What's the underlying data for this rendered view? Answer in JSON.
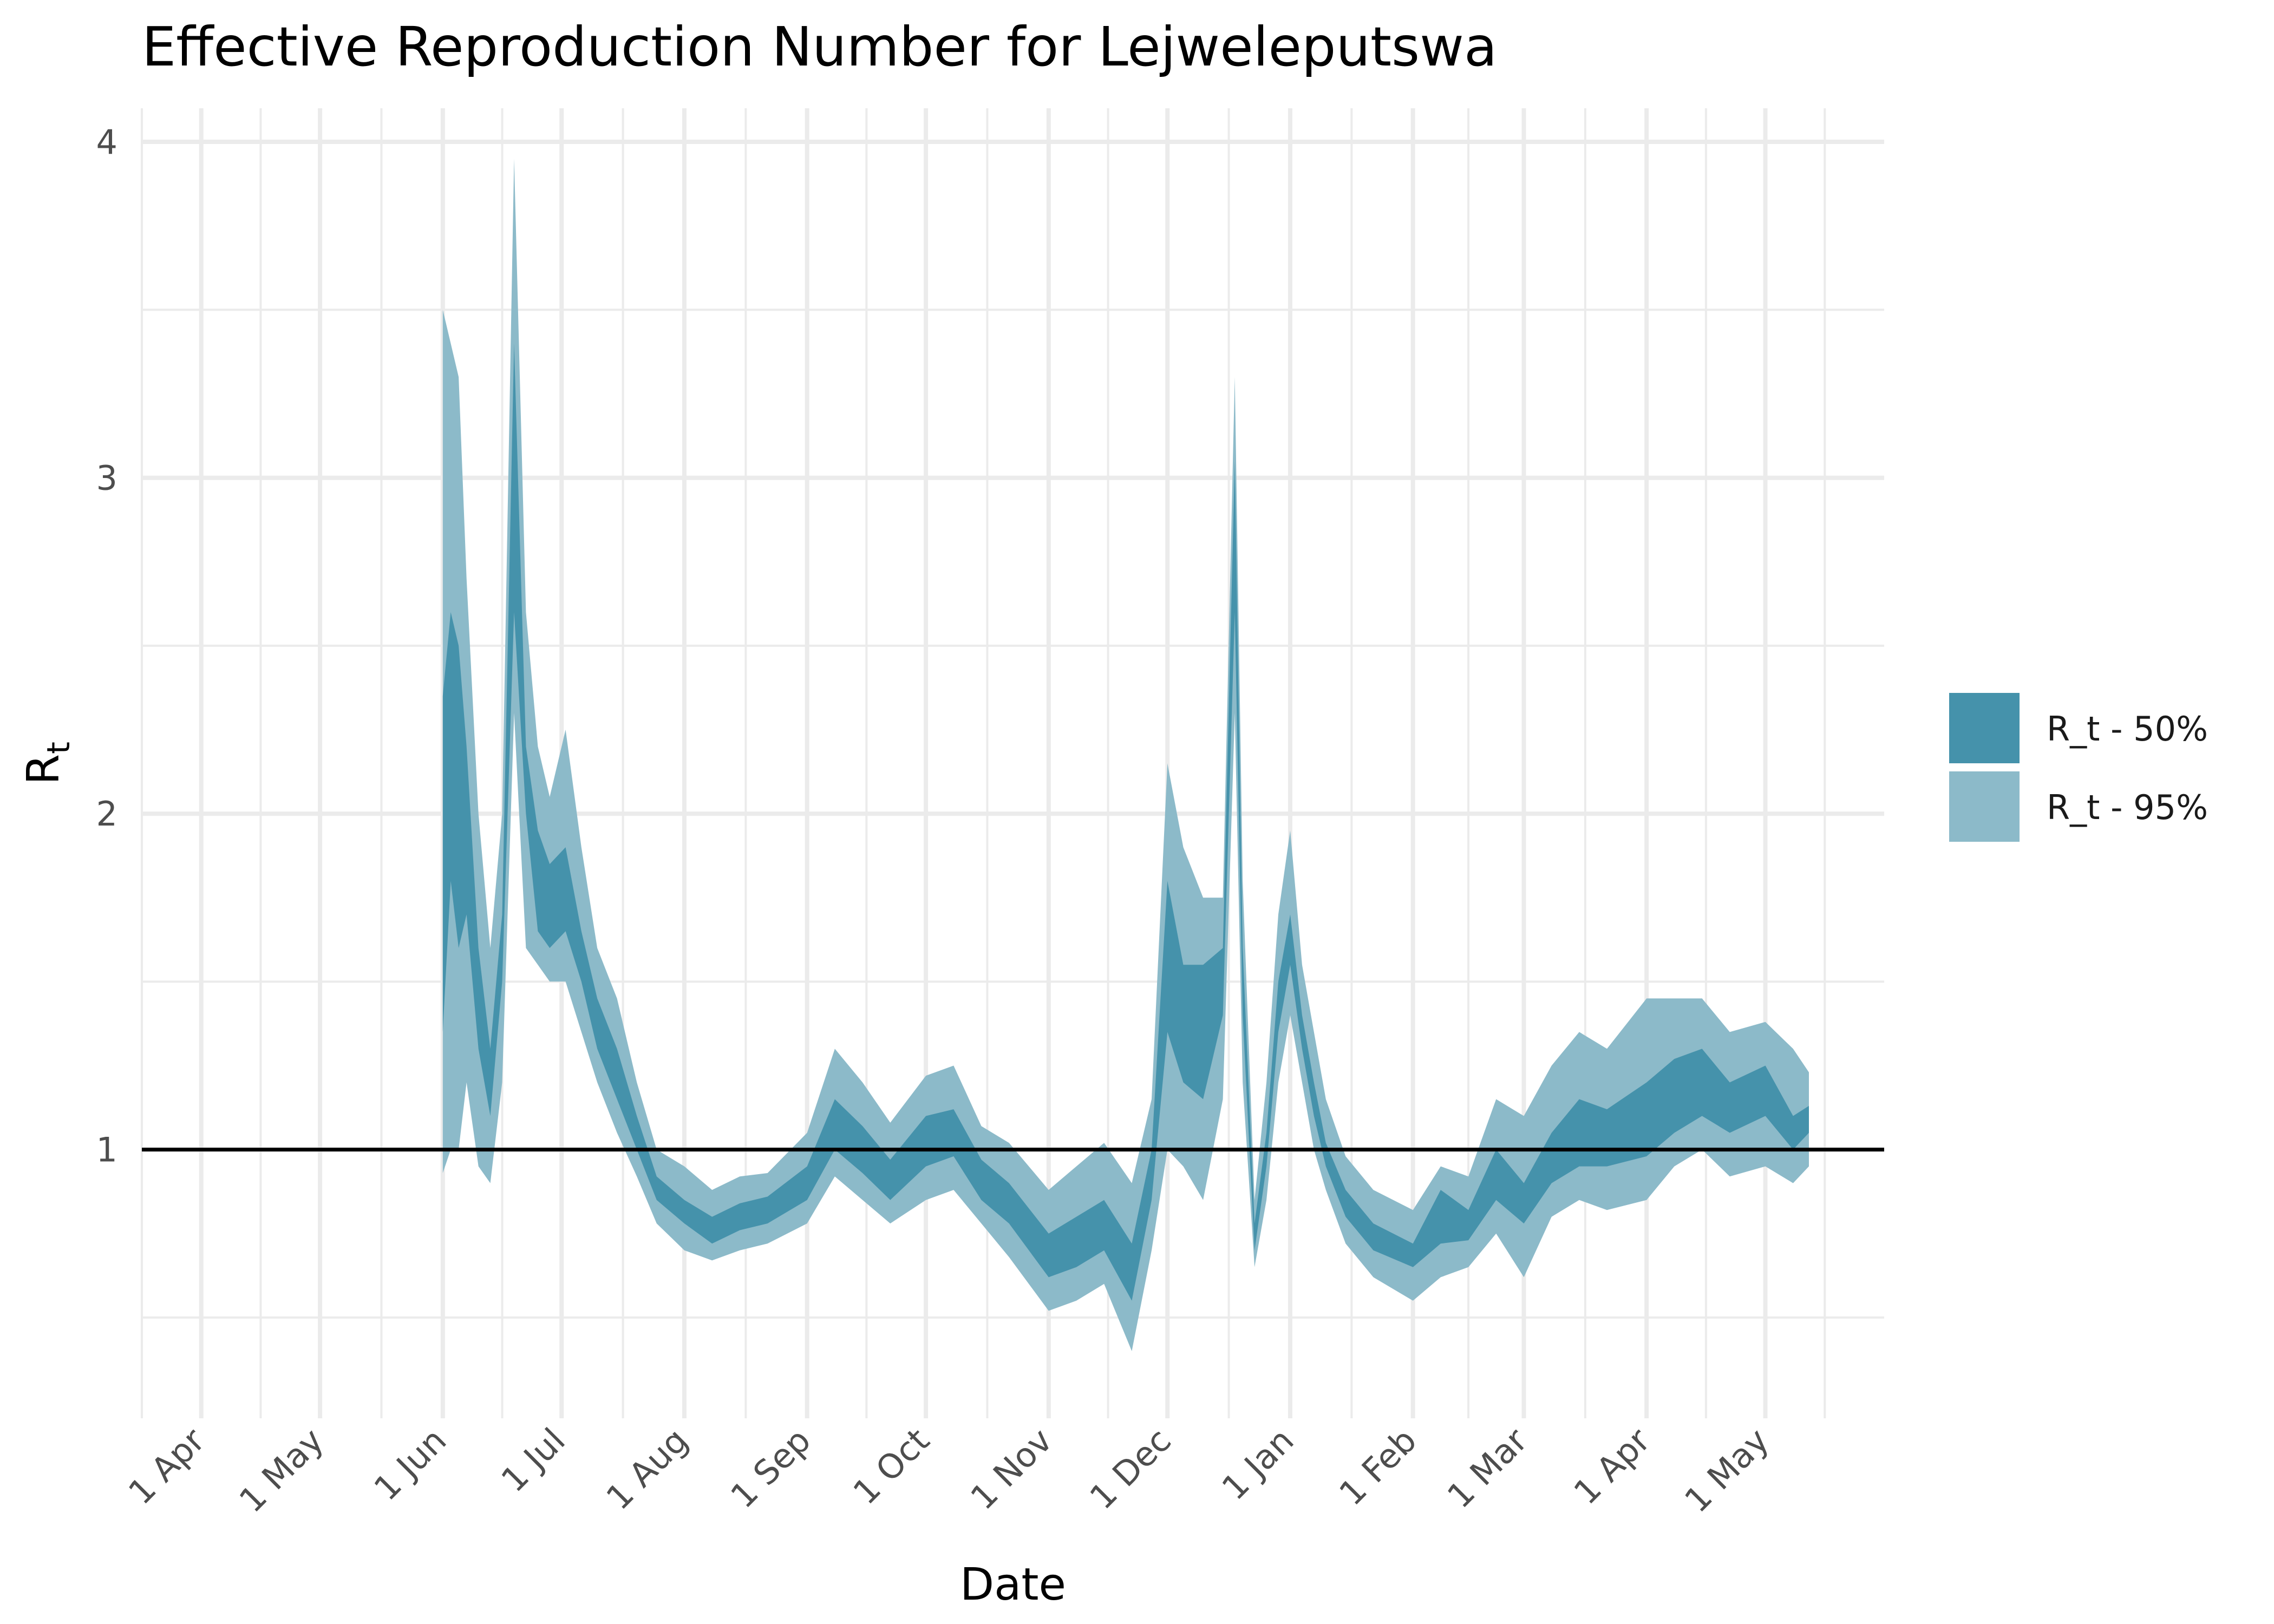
{
  "title": "Effective Reproduction Number for Lejweleputswa",
  "chart_data": {
    "type": "area",
    "title": "Effective Reproduction Number for Lejweleputswa",
    "xlabel": "Date",
    "ylabel": "R",
    "ylabel_subscript": "t",
    "ylim": [
      0.2,
      4.1
    ],
    "xlim": [
      "2020-03-17",
      "2021-05-31"
    ],
    "x_ticks": [
      {
        "date": "2020-04-01",
        "label": "1 Apr"
      },
      {
        "date": "2020-05-01",
        "label": "1 May"
      },
      {
        "date": "2020-06-01",
        "label": "1 Jun"
      },
      {
        "date": "2020-07-01",
        "label": "1 Jul"
      },
      {
        "date": "2020-08-01",
        "label": "1 Aug"
      },
      {
        "date": "2020-09-01",
        "label": "1 Sep"
      },
      {
        "date": "2020-10-01",
        "label": "1 Oct"
      },
      {
        "date": "2020-11-01",
        "label": "1 Nov"
      },
      {
        "date": "2020-12-01",
        "label": "1 Dec"
      },
      {
        "date": "2021-01-01",
        "label": "1 Jan"
      },
      {
        "date": "2021-02-01",
        "label": "1 Feb"
      },
      {
        "date": "2021-03-01",
        "label": "1 Mar"
      },
      {
        "date": "2021-04-01",
        "label": "1 Apr"
      },
      {
        "date": "2021-05-01",
        "label": "1 May"
      }
    ],
    "y_ticks": [
      1,
      2,
      3,
      4
    ],
    "grid": true,
    "reference_line": 1,
    "legend_position": "right",
    "colors": {
      "band50": "#4592ab",
      "band95": "#8cbac9",
      "grid": "#ebebeb",
      "axis_text": "#4d4d4d"
    },
    "series": [
      {
        "name": "R_t - 50%",
        "x": [
          "2020-06-01",
          "2020-06-03",
          "2020-06-05",
          "2020-06-07",
          "2020-06-10",
          "2020-06-13",
          "2020-06-16",
          "2020-06-19",
          "2020-06-22",
          "2020-06-25",
          "2020-06-28",
          "2020-07-02",
          "2020-07-06",
          "2020-07-10",
          "2020-07-15",
          "2020-07-20",
          "2020-07-25",
          "2020-08-01",
          "2020-08-08",
          "2020-08-15",
          "2020-08-22",
          "2020-09-01",
          "2020-09-08",
          "2020-09-15",
          "2020-09-22",
          "2020-10-01",
          "2020-10-08",
          "2020-10-15",
          "2020-10-22",
          "2020-11-01",
          "2020-11-08",
          "2020-11-15",
          "2020-11-22",
          "2020-11-27",
          "2020-12-01",
          "2020-12-05",
          "2020-12-10",
          "2020-12-15",
          "2020-12-18",
          "2020-12-20",
          "2020-12-23",
          "2020-12-26",
          "2020-12-29",
          "2021-01-01",
          "2021-01-04",
          "2021-01-07",
          "2021-01-10",
          "2021-01-15",
          "2021-01-22",
          "2021-02-01",
          "2021-02-08",
          "2021-02-15",
          "2021-02-22",
          "2021-03-01",
          "2021-03-08",
          "2021-03-15",
          "2021-03-22",
          "2021-04-01",
          "2021-04-08",
          "2021-04-15",
          "2021-04-22",
          "2021-05-01",
          "2021-05-08",
          "2021-05-12"
        ],
        "lower": [
          1.35,
          1.8,
          1.6,
          1.7,
          1.3,
          1.1,
          1.5,
          2.6,
          2.0,
          1.65,
          1.6,
          1.65,
          1.5,
          1.3,
          1.15,
          1.0,
          0.85,
          0.78,
          0.72,
          0.76,
          0.78,
          0.85,
          1.0,
          0.93,
          0.85,
          0.95,
          0.98,
          0.85,
          0.78,
          0.62,
          0.65,
          0.7,
          0.55,
          0.85,
          1.35,
          1.2,
          1.15,
          1.4,
          2.6,
          1.4,
          0.7,
          0.95,
          1.35,
          1.55,
          1.3,
          1.1,
          0.95,
          0.8,
          0.7,
          0.65,
          0.72,
          0.73,
          0.85,
          0.78,
          0.9,
          0.95,
          0.95,
          0.98,
          1.05,
          1.1,
          1.05,
          1.1,
          1.0,
          1.05
        ],
        "upper": [
          2.35,
          2.6,
          2.5,
          2.2,
          1.6,
          1.3,
          1.7,
          3.4,
          2.2,
          1.95,
          1.85,
          1.9,
          1.65,
          1.45,
          1.3,
          1.1,
          0.92,
          0.85,
          0.8,
          0.84,
          0.86,
          0.95,
          1.15,
          1.07,
          0.97,
          1.1,
          1.12,
          0.97,
          0.9,
          0.75,
          0.8,
          0.85,
          0.72,
          1.0,
          1.8,
          1.55,
          1.55,
          1.6,
          3.05,
          1.6,
          0.78,
          1.05,
          1.5,
          1.7,
          1.4,
          1.2,
          1.02,
          0.88,
          0.78,
          0.72,
          0.88,
          0.82,
          1.0,
          0.9,
          1.05,
          1.15,
          1.12,
          1.2,
          1.27,
          1.3,
          1.2,
          1.25,
          1.1,
          1.13
        ]
      },
      {
        "name": "R_t - 95%",
        "x": [
          "2020-06-01",
          "2020-06-03",
          "2020-06-05",
          "2020-06-07",
          "2020-06-10",
          "2020-06-13",
          "2020-06-16",
          "2020-06-19",
          "2020-06-22",
          "2020-06-25",
          "2020-06-28",
          "2020-07-02",
          "2020-07-06",
          "2020-07-10",
          "2020-07-15",
          "2020-07-20",
          "2020-07-25",
          "2020-08-01",
          "2020-08-08",
          "2020-08-15",
          "2020-08-22",
          "2020-09-01",
          "2020-09-08",
          "2020-09-15",
          "2020-09-22",
          "2020-10-01",
          "2020-10-08",
          "2020-10-15",
          "2020-10-22",
          "2020-11-01",
          "2020-11-08",
          "2020-11-15",
          "2020-11-22",
          "2020-11-27",
          "2020-12-01",
          "2020-12-05",
          "2020-12-10",
          "2020-12-15",
          "2020-12-18",
          "2020-12-20",
          "2020-12-23",
          "2020-12-26",
          "2020-12-29",
          "2021-01-01",
          "2021-01-04",
          "2021-01-07",
          "2021-01-10",
          "2021-01-15",
          "2021-01-22",
          "2021-02-01",
          "2021-02-08",
          "2021-02-15",
          "2021-02-22",
          "2021-03-01",
          "2021-03-08",
          "2021-03-15",
          "2021-03-22",
          "2021-04-01",
          "2021-04-08",
          "2021-04-15",
          "2021-04-22",
          "2021-05-01",
          "2021-05-08",
          "2021-05-12"
        ],
        "lower": [
          0.93,
          1.0,
          1.0,
          1.2,
          0.95,
          0.9,
          1.2,
          2.3,
          1.6,
          1.55,
          1.5,
          1.5,
          1.35,
          1.2,
          1.05,
          0.92,
          0.78,
          0.7,
          0.67,
          0.7,
          0.72,
          0.78,
          0.92,
          0.85,
          0.78,
          0.85,
          0.88,
          0.78,
          0.68,
          0.52,
          0.55,
          0.6,
          0.4,
          0.7,
          1.0,
          0.95,
          0.85,
          1.15,
          2.3,
          1.2,
          0.65,
          0.85,
          1.2,
          1.4,
          1.2,
          1.0,
          0.88,
          0.72,
          0.62,
          0.55,
          0.62,
          0.65,
          0.75,
          0.62,
          0.8,
          0.85,
          0.82,
          0.85,
          0.95,
          1.0,
          0.92,
          0.95,
          0.9,
          0.95
        ],
        "upper": [
          3.5,
          3.4,
          3.3,
          2.7,
          2.0,
          1.6,
          2.0,
          3.95,
          2.6,
          2.2,
          2.05,
          2.25,
          1.9,
          1.6,
          1.45,
          1.2,
          1.0,
          0.95,
          0.88,
          0.92,
          0.93,
          1.05,
          1.3,
          1.2,
          1.08,
          1.22,
          1.25,
          1.07,
          1.02,
          0.88,
          0.95,
          1.02,
          0.9,
          1.15,
          2.15,
          1.9,
          1.75,
          1.75,
          3.3,
          1.8,
          0.85,
          1.2,
          1.7,
          1.95,
          1.55,
          1.35,
          1.15,
          0.98,
          0.88,
          0.82,
          0.95,
          0.92,
          1.15,
          1.1,
          1.25,
          1.35,
          1.3,
          1.45,
          1.45,
          1.45,
          1.35,
          1.38,
          1.3,
          1.23
        ]
      }
    ]
  }
}
